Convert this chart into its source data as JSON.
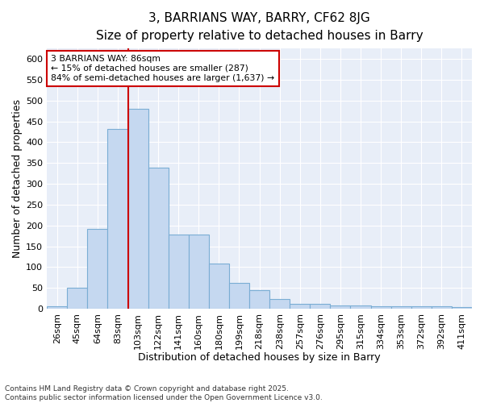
{
  "title1": "3, BARRIANS WAY, BARRY, CF62 8JG",
  "title2": "Size of property relative to detached houses in Barry",
  "xlabel": "Distribution of detached houses by size in Barry",
  "ylabel": "Number of detached properties",
  "categories": [
    "26sqm",
    "45sqm",
    "64sqm",
    "83sqm",
    "103sqm",
    "122sqm",
    "141sqm",
    "160sqm",
    "180sqm",
    "199sqm",
    "218sqm",
    "238sqm",
    "257sqm",
    "276sqm",
    "295sqm",
    "315sqm",
    "334sqm",
    "353sqm",
    "372sqm",
    "392sqm",
    "411sqm"
  ],
  "values": [
    5,
    50,
    191,
    432,
    481,
    338,
    178,
    178,
    109,
    62,
    45,
    24,
    12,
    12,
    8,
    8,
    5,
    5,
    5,
    5,
    3
  ],
  "bar_color": "#c5d8f0",
  "bar_edge_color": "#7aadd4",
  "vline_x_index": 3.5,
  "vline_color": "#cc0000",
  "annotation_title": "3 BARRIANS WAY: 86sqm",
  "annotation_line1": "← 15% of detached houses are smaller (287)",
  "annotation_line2": "84% of semi-detached houses are larger (1,637) →",
  "annotation_box_facecolor": "#ffffff",
  "annotation_box_edgecolor": "#cc0000",
  "ylim": [
    0,
    625
  ],
  "yticks": [
    0,
    50,
    100,
    150,
    200,
    250,
    300,
    350,
    400,
    450,
    500,
    550,
    600
  ],
  "footnote": "Contains HM Land Registry data © Crown copyright and database right 2025.\nContains public sector information licensed under the Open Government Licence v3.0.",
  "fig_facecolor": "#ffffff",
  "axes_facecolor": "#e8eef8",
  "grid_color": "#ffffff",
  "title1_fontsize": 11,
  "title2_fontsize": 10,
  "axis_label_fontsize": 9,
  "tick_fontsize": 8,
  "footnote_fontsize": 6.5
}
